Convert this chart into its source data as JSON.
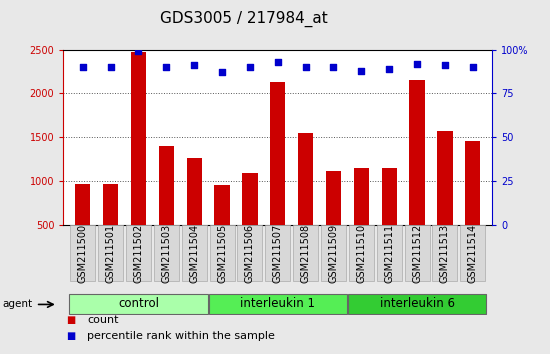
{
  "title": "GDS3005 / 217984_at",
  "samples": [
    "GSM211500",
    "GSM211501",
    "GSM211502",
    "GSM211503",
    "GSM211504",
    "GSM211505",
    "GSM211506",
    "GSM211507",
    "GSM211508",
    "GSM211509",
    "GSM211510",
    "GSM211511",
    "GSM211512",
    "GSM211513",
    "GSM211514"
  ],
  "counts": [
    960,
    960,
    2470,
    1400,
    1260,
    950,
    1090,
    2130,
    1550,
    1110,
    1150,
    1150,
    2150,
    1570,
    1460
  ],
  "percentile_ranks": [
    90,
    90,
    99,
    90,
    91,
    87,
    90,
    93,
    90,
    90,
    88,
    89,
    92,
    91,
    90
  ],
  "groups": [
    {
      "label": "control",
      "start": 0,
      "end": 5,
      "color": "#aaffaa"
    },
    {
      "label": "interleukin 1",
      "start": 5,
      "end": 10,
      "color": "#55ee55"
    },
    {
      "label": "interleukin 6",
      "start": 10,
      "end": 15,
      "color": "#33cc33"
    }
  ],
  "bar_color": "#cc0000",
  "dot_color": "#0000cc",
  "left_axis_color": "#cc0000",
  "right_axis_color": "#0000cc",
  "ylim_left": [
    500,
    2500
  ],
  "ylim_right": [
    0,
    100
  ],
  "yticks_left": [
    500,
    1000,
    1500,
    2000,
    2500
  ],
  "yticks_right": [
    0,
    25,
    50,
    75,
    100
  ],
  "tick_bg_color": "#d8d8d8",
  "background_color": "#e8e8e8",
  "plot_bg_color": "#ffffff",
  "title_fontsize": 11,
  "tick_label_fontsize": 7,
  "group_label_fontsize": 8.5,
  "legend_fontsize": 8,
  "agent_label": "agent",
  "legend_count": "count",
  "legend_percentile": "percentile rank within the sample"
}
